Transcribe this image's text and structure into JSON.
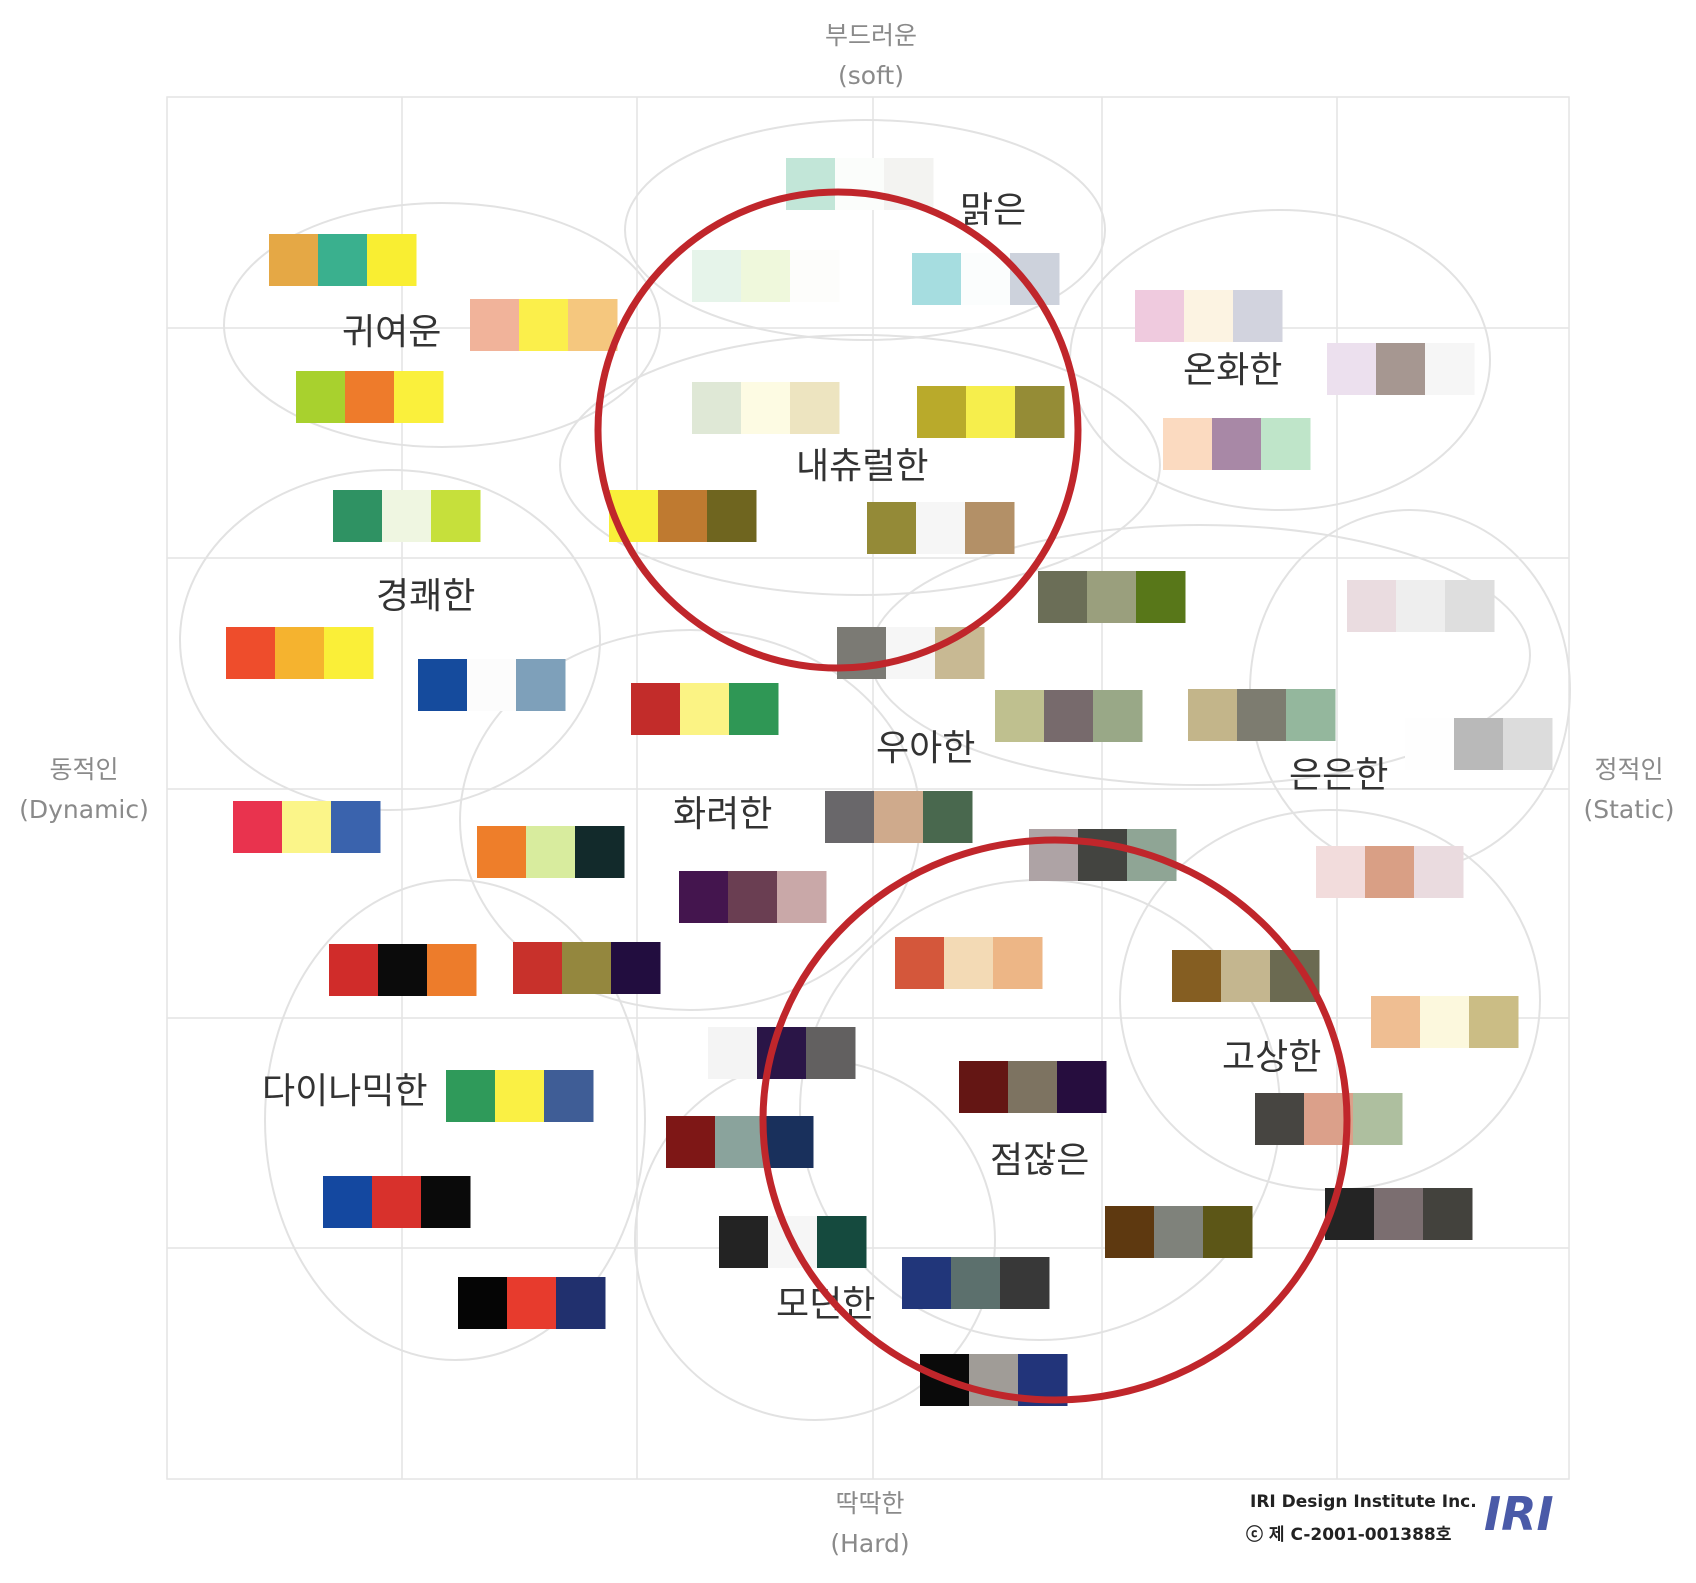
{
  "axes": {
    "top": {
      "ko": "부드러운",
      "en": "(soft)"
    },
    "bottom": {
      "ko": "딱딱한",
      "en": "(Hard)"
    },
    "left": {
      "ko": "동적인",
      "en": "(Dynamic)"
    },
    "right": {
      "ko": "정적인",
      "en": "(Static)"
    }
  },
  "categories": {
    "bright": "맑은",
    "cute": "귀여운",
    "warm": "온화한",
    "natural": "내츄럴한",
    "lively": "경쾌한",
    "elegant": "우아한",
    "subtle": "은은한",
    "gorgeous": "화려한",
    "noble": "고상한",
    "dynamic": "다이나믹한",
    "dignified": "점잖은",
    "modern": "모던한"
  },
  "credit": {
    "company": "IRI Design Institute Inc.",
    "registration": "ⓒ 제 C-2001-001388호",
    "logo": "IRI"
  },
  "colors": {
    "highlight_circle": "#c0262b",
    "grid": "#e4e4e4",
    "cluster_outline": "#e2e2e2"
  },
  "palettes": [
    {
      "id": "p01",
      "colors": [
        "#c2e6d8",
        "#fbfdfb",
        "#f3f3f1"
      ]
    },
    {
      "id": "p02",
      "colors": [
        "#e6f4ea",
        "#eff8dc",
        "#fdfdfb"
      ]
    },
    {
      "id": "p03",
      "colors": [
        "#a6dde0",
        "#fbfdfd",
        "#cdd2dc"
      ]
    },
    {
      "id": "p04",
      "colors": [
        "#e5a845",
        "#3ab08e",
        "#f9ee32"
      ]
    },
    {
      "id": "p05",
      "colors": [
        "#f1b39a",
        "#fbef4b",
        "#f5c77e"
      ]
    },
    {
      "id": "p06",
      "colors": [
        "#a8d12e",
        "#ee7b2b",
        "#faf03c"
      ]
    },
    {
      "id": "p07",
      "colors": [
        "#efcade",
        "#fcf3e2",
        "#d2d3de"
      ]
    },
    {
      "id": "p08",
      "colors": [
        "#ece0ee",
        "#a69791",
        "#f6f6f6"
      ]
    },
    {
      "id": "p09",
      "colors": [
        "#dfe8d6",
        "#fdfbe3",
        "#ede4c0"
      ]
    },
    {
      "id": "p10",
      "colors": [
        "#b9aa2b",
        "#f6ee4c",
        "#958c36"
      ]
    },
    {
      "id": "p11",
      "colors": [
        "#fbdac0",
        "#a888a6",
        "#bfe5c9"
      ]
    },
    {
      "id": "p12",
      "colors": [
        "#2f9263",
        "#eff6e1",
        "#c6e03b"
      ]
    },
    {
      "id": "p13",
      "colors": [
        "#f9ef3a",
        "#bf7a30",
        "#6f651f"
      ]
    },
    {
      "id": "p14",
      "colors": [
        "#948a37",
        "#f6f6f6",
        "#b39067"
      ]
    },
    {
      "id": "p15",
      "colors": [
        "#6b6e57",
        "#9a9f7d",
        "#587719"
      ]
    },
    {
      "id": "p16",
      "colors": [
        "#eadce0",
        "#eeeeee",
        "#dedede"
      ]
    },
    {
      "id": "p17",
      "colors": [
        "#ee4d2c",
        "#f5b32f",
        "#faef38"
      ]
    },
    {
      "id": "p18",
      "colors": [
        "#154b9d",
        "#fcfcfc",
        "#7ea0ba"
      ]
    },
    {
      "id": "p19",
      "colors": [
        "#7b7a74",
        "#f6f6f6",
        "#c8b993"
      ]
    },
    {
      "id": "p20",
      "colors": [
        "#c22c2a",
        "#fbf384",
        "#2f9755"
      ]
    },
    {
      "id": "p21",
      "colors": [
        "#bfc08f",
        "#776a6c",
        "#99a887"
      ]
    },
    {
      "id": "p22",
      "colors": [
        "#c3b58a",
        "#7d7c70",
        "#94b79d"
      ]
    },
    {
      "id": "p23",
      "colors": [
        "#fefefe",
        "#b9b9b9",
        "#dcdcdc"
      ]
    },
    {
      "id": "p24",
      "colors": [
        "#e9334e",
        "#fbf589",
        "#3a63ad"
      ]
    },
    {
      "id": "p25",
      "colors": [
        "#ee7e2a",
        "#d8ec9e",
        "#122a2b"
      ]
    },
    {
      "id": "p26",
      "colors": [
        "#69676a",
        "#cfaa8c",
        "#49684e"
      ]
    },
    {
      "id": "p27",
      "colors": [
        "#aea3a5",
        "#434440",
        "#8fa595"
      ]
    },
    {
      "id": "p28",
      "colors": [
        "#f2dcdc",
        "#d99f85",
        "#eadbdf"
      ]
    },
    {
      "id": "p29",
      "colors": [
        "#44154e",
        "#6a3e52",
        "#c9a8a8"
      ]
    },
    {
      "id": "p30",
      "colors": [
        "#d02c2a",
        "#0b0b0b",
        "#ed7c2b"
      ]
    },
    {
      "id": "p31",
      "colors": [
        "#c8312b",
        "#94873e",
        "#220d3f"
      ]
    },
    {
      "id": "p32",
      "colors": [
        "#d4573b",
        "#f3dab5",
        "#edb686"
      ]
    },
    {
      "id": "p33",
      "colors": [
        "#855e22",
        "#c4b68f",
        "#6b6a51"
      ]
    },
    {
      "id": "p34",
      "colors": [
        "#efbe92",
        "#fcf8dd",
        "#cbbd85"
      ]
    },
    {
      "id": "p35",
      "colors": [
        "#f4f4f4",
        "#2a1547",
        "#626060"
      ]
    },
    {
      "id": "p36",
      "colors": [
        "#641614",
        "#7d7361",
        "#260d3e"
      ]
    },
    {
      "id": "p37",
      "colors": [
        "#2f9a5a",
        "#faf044",
        "#3f5d96"
      ]
    },
    {
      "id": "p38",
      "colors": [
        "#474541",
        "#dba08a",
        "#aebf9f"
      ]
    },
    {
      "id": "p39",
      "colors": [
        "#7e1716",
        "#8aa39c",
        "#19305c"
      ]
    },
    {
      "id": "p40",
      "colors": [
        "#1448a0",
        "#d8312c",
        "#0a0a0a"
      ]
    },
    {
      "id": "p41",
      "colors": [
        "#232323",
        "#f6f6f6",
        "#154a3e"
      ]
    },
    {
      "id": "p42",
      "colors": [
        "#5e3910",
        "#7f827b",
        "#5c5617"
      ]
    },
    {
      "id": "p43",
      "colors": [
        "#242424",
        "#7b6e70",
        "#43423d"
      ]
    },
    {
      "id": "p44",
      "colors": [
        "#21367a",
        "#5c706d",
        "#383838"
      ]
    },
    {
      "id": "p45",
      "colors": [
        "#050505",
        "#e73b2d",
        "#21306e"
      ]
    },
    {
      "id": "p46",
      "colors": [
        "#0a0a0a",
        "#a09c97",
        "#22347a"
      ]
    }
  ]
}
